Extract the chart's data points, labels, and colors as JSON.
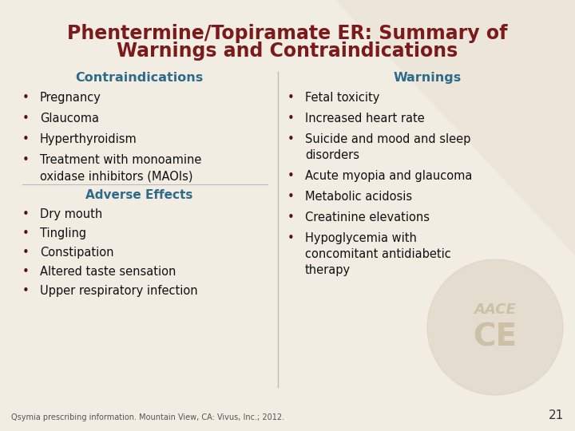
{
  "title_line1": "Phentermine/Topiramate ER: Summary of",
  "title_line2": "Warnings and Contraindications",
  "title_color": "#7B1A1A",
  "bg_color": "#F2EDE3",
  "header_color": "#2E6B8A",
  "body_color": "#111111",
  "bullet_color": "#5A1010",
  "col1_header": "Contraindications",
  "col2_header": "Warnings",
  "col1_items": [
    "Pregnancy",
    "Glaucoma",
    "Hyperthyroidism",
    "Treatment with monoamine\noxidase inhibitors (MAOIs)"
  ],
  "adverse_effects_header": "Adverse Effects",
  "adverse_effects_items": [
    "Dry mouth",
    "Tingling",
    "Constipation",
    "Altered taste sensation",
    "Upper respiratory infection"
  ],
  "col2_items": [
    "Fetal toxicity",
    "Increased heart rate",
    "Suicide and mood and sleep\ndisorders",
    "Acute myopia and glaucoma",
    "Metabolic acidosis",
    "Creatinine elevations",
    "Hypoglycemia with\nconcomitant antidiabetic\ntherapy"
  ],
  "footnote": "Qsymia prescribing information. Mountain View, CA: Vivus, Inc.; 2012.",
  "page_num": "21",
  "divider_color": "#BBBBBB",
  "watermark_color": "#D8CEBC",
  "triangle_color": "#E6DFD4"
}
